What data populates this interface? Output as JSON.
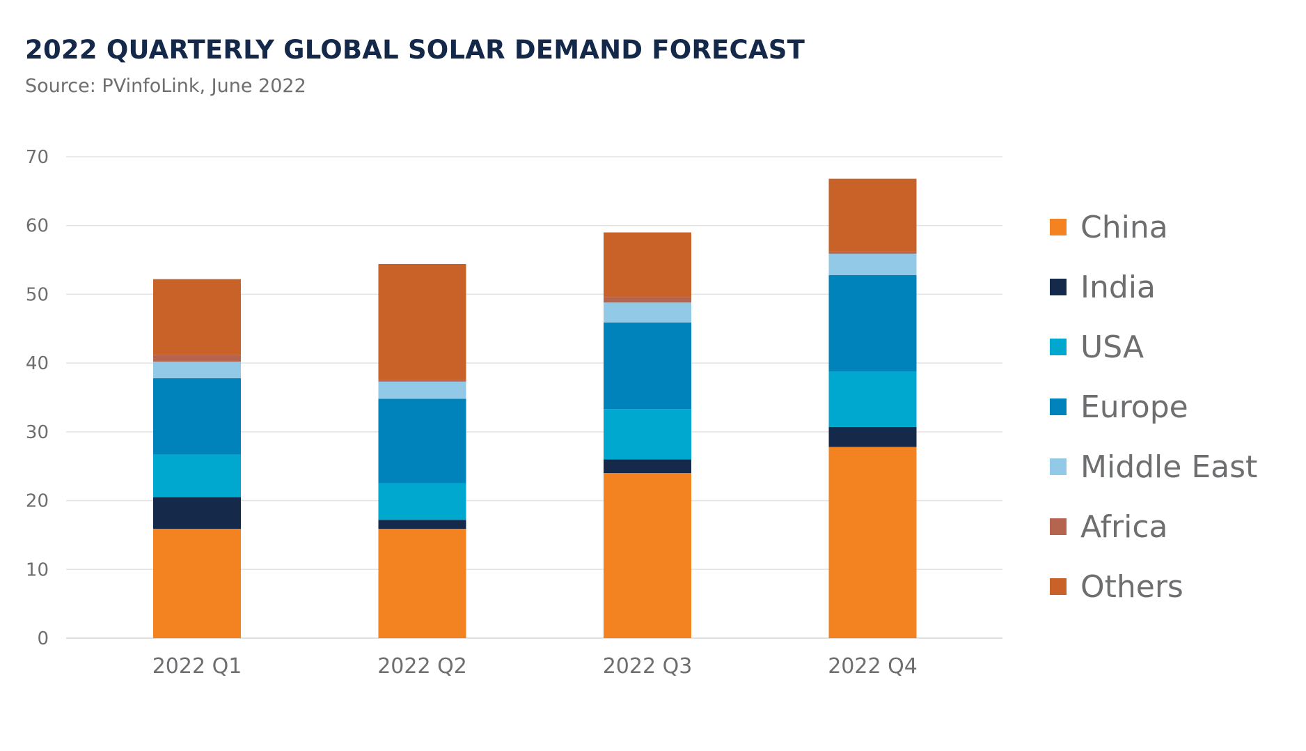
{
  "title": "2022 QUARTERLY GLOBAL SOLAR DEMAND FORECAST",
  "subtitle": "Source: PVinfoLink, June 2022",
  "chart_data": {
    "type": "bar",
    "stacked": true,
    "title": "2022 QUARTERLY GLOBAL SOLAR DEMAND FORECAST",
    "subtitle": "Source: PVinfoLink, June 2022",
    "xlabel": "",
    "ylabel": "",
    "categories": [
      "2022 Q1",
      "2022 Q2",
      "2022 Q3",
      "2022 Q4"
    ],
    "ylim": [
      0,
      70
    ],
    "yticks": [
      0,
      10,
      20,
      30,
      40,
      50,
      60,
      70
    ],
    "grid": true,
    "legend_position": "right",
    "series": [
      {
        "name": "China",
        "color": "#f38220",
        "values": [
          15.9,
          15.9,
          24.0,
          27.8
        ]
      },
      {
        "name": "India",
        "color": "#15294a",
        "values": [
          4.6,
          1.3,
          2.0,
          2.9
        ]
      },
      {
        "name": "USA",
        "color": "#00a8cf",
        "values": [
          6.2,
          5.3,
          7.3,
          8.1
        ]
      },
      {
        "name": "Europe",
        "color": "#0083ba",
        "values": [
          11.1,
          12.3,
          12.6,
          14.0
        ]
      },
      {
        "name": "Middle East",
        "color": "#92c9e7",
        "values": [
          2.4,
          2.5,
          2.9,
          3.1
        ]
      },
      {
        "name": "Africa",
        "color": "#b5644f",
        "values": [
          1.0,
          0.2,
          0.8,
          0.3
        ]
      },
      {
        "name": "Others",
        "color": "#c96228",
        "values": [
          11.0,
          16.9,
          9.4,
          10.6
        ]
      }
    ]
  }
}
